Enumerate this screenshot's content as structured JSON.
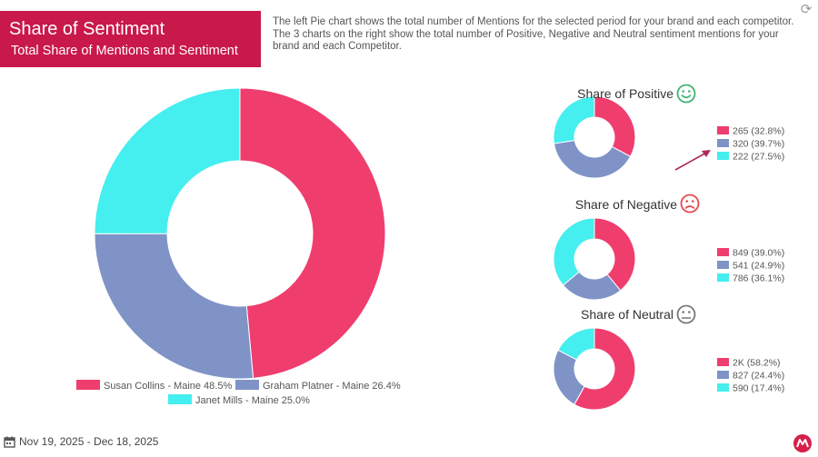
{
  "header": {
    "title": "Share of Sentiment",
    "subtitle": "Total Share of Mentions and Sentiment",
    "description_1": "The left Pie chart shows the total number of Mentions for the selected period for your brand and each competitor.",
    "description_2": "The 3 charts on the right show the total number of Positive, Negative and Neutral sentiment mentions for your brand and each Competitor."
  },
  "footer": {
    "date_range": "Nov 19, 2025 - Dec 18, 2025"
  },
  "colors": {
    "collins": "#ef3e6e",
    "platner": "#7f93c7",
    "mills": "#45eeef",
    "brand": "#c9184a"
  },
  "icons": {
    "refresh": "refresh-icon",
    "calendar": "calendar-icon",
    "logo": "brand-logo"
  },
  "chart_data": [
    {
      "type": "pie",
      "title": "",
      "categories": [
        "Susan Collins - Maine",
        "Graham Platner - Maine",
        "Janet Mills - Maine"
      ],
      "values": [
        48.5,
        26.4,
        25.0
      ],
      "legend_labels": [
        "Susan Collins - Maine 48.5%",
        "Graham Platner - Maine 26.4%",
        "Janet Mills - Maine 25.0%"
      ],
      "legend": "bottom"
    },
    {
      "type": "pie",
      "title": "Share of Positive",
      "mood": "happy",
      "categories": [
        "Susan Collins - Maine",
        "Graham Platner - Maine",
        "Janet Mills - Maine"
      ],
      "values": [
        265,
        320,
        222
      ],
      "labels": [
        "265 (32.8%)",
        "320 (39.7%)",
        "222 (27.5%)"
      ],
      "legend": "right"
    },
    {
      "type": "pie",
      "title": "Share of Negative",
      "mood": "sad",
      "categories": [
        "Susan Collins - Maine",
        "Graham Platner - Maine",
        "Janet Mills - Maine"
      ],
      "values": [
        849,
        541,
        786
      ],
      "labels": [
        "849 (39.0%)",
        "541 (24.9%)",
        "786 (36.1%)"
      ],
      "legend": "right"
    },
    {
      "type": "pie",
      "title": "Share of Neutral",
      "mood": "neutral",
      "categories": [
        "Susan Collins - Maine",
        "Graham Platner - Maine",
        "Janet Mills - Maine"
      ],
      "values": [
        58.2,
        24.4,
        17.4
      ],
      "labels": [
        "2K (58.2%)",
        "827 (24.4%)",
        "590 (17.4%)"
      ],
      "legend": "right"
    }
  ]
}
